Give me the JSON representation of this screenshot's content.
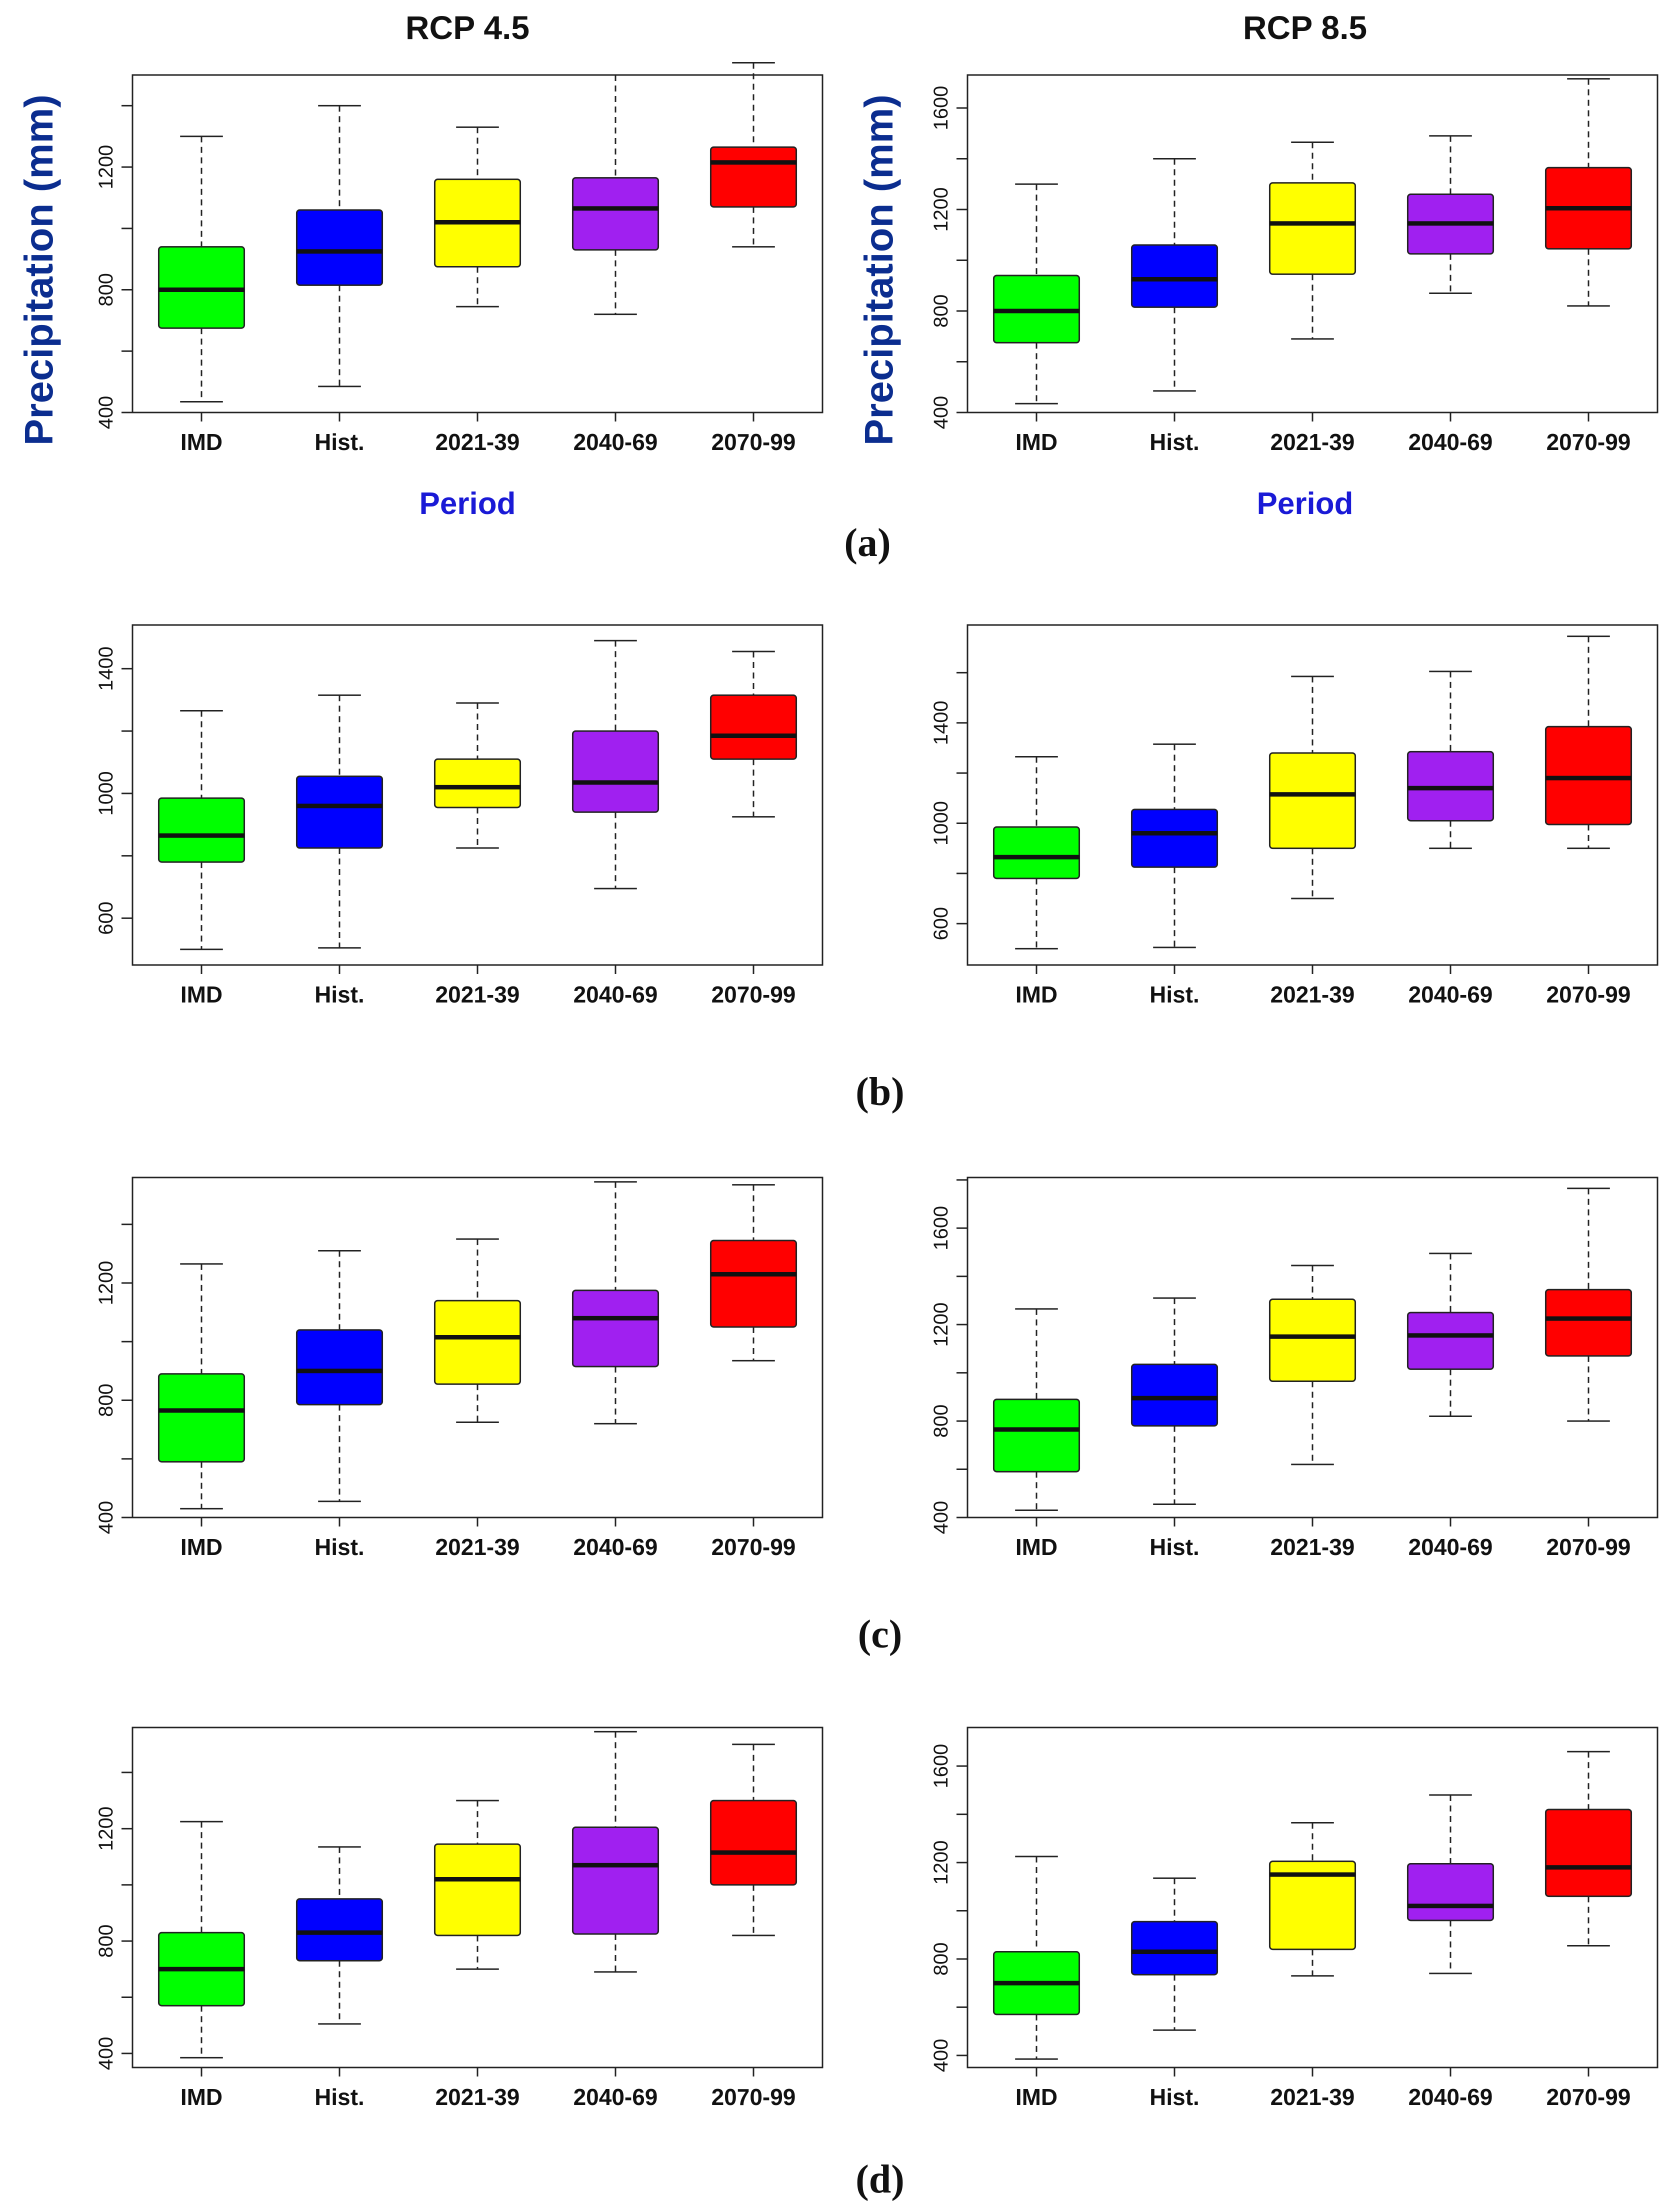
{
  "figure": {
    "column_titles": [
      "RCP 4.5",
      "RCP 8.5"
    ],
    "ylabel": "Precipitation (mm)",
    "xlabel": "Period",
    "panel_labels": [
      "(a)",
      "(b)",
      "(c)",
      "(d)"
    ]
  },
  "colors": {
    "IMD": "#00ff00",
    "Hist.": "#0000ff",
    "2021-39": "#ffff00",
    "2040-69": "#a020f0",
    "2070-99": "#ff0000",
    "axis_title": "#0b2d8f",
    "period_label": "#1a1ad6"
  },
  "chart_data": [
    {
      "id": "a-rcp45",
      "type": "box",
      "title": "RCP 4.5",
      "panel": "(a)",
      "ylabel": "Precipitation (mm)",
      "xlabel": "Period",
      "categories": [
        "IMD",
        "Hist.",
        "2021-39",
        "2040-69",
        "2070-99"
      ],
      "ylim": [
        400,
        1500
      ],
      "yticks": [
        400,
        800,
        1200
      ],
      "boxes": [
        {
          "min": 435,
          "q1": 675,
          "median": 800,
          "q3": 940,
          "max": 1300
        },
        {
          "min": 485,
          "q1": 815,
          "median": 925,
          "q3": 1060,
          "max": 1400
        },
        {
          "min": 745,
          "q1": 875,
          "median": 1020,
          "q3": 1160,
          "max": 1330
        },
        {
          "min": 720,
          "q1": 930,
          "median": 1065,
          "q3": 1165,
          "max": 1500
        },
        {
          "min": 940,
          "q1": 1070,
          "median": 1215,
          "q3": 1265,
          "max": 1540
        }
      ]
    },
    {
      "id": "a-rcp85",
      "type": "box",
      "title": "RCP 8.5",
      "panel": "(a)",
      "ylabel": "Precipitation (mm)",
      "xlabel": "Period",
      "categories": [
        "IMD",
        "Hist.",
        "2021-39",
        "2040-69",
        "2070-99"
      ],
      "ylim": [
        400,
        1730
      ],
      "yticks": [
        400,
        800,
        1200,
        1600
      ],
      "boxes": [
        {
          "min": 435,
          "q1": 675,
          "median": 800,
          "q3": 940,
          "max": 1300
        },
        {
          "min": 485,
          "q1": 815,
          "median": 925,
          "q3": 1060,
          "max": 1400
        },
        {
          "min": 690,
          "q1": 945,
          "median": 1145,
          "q3": 1305,
          "max": 1465
        },
        {
          "min": 870,
          "q1": 1025,
          "median": 1145,
          "q3": 1260,
          "max": 1490
        },
        {
          "min": 820,
          "q1": 1045,
          "median": 1205,
          "q3": 1365,
          "max": 1715
        }
      ]
    },
    {
      "id": "b-rcp45",
      "type": "box",
      "title": "",
      "panel": "(b)",
      "categories": [
        "IMD",
        "Hist.",
        "2021-39",
        "2040-69",
        "2070-99"
      ],
      "ylim": [
        450,
        1540
      ],
      "yticks": [
        600,
        1000,
        1400
      ],
      "boxes": [
        {
          "min": 500,
          "q1": 780,
          "median": 865,
          "q3": 985,
          "max": 1265
        },
        {
          "min": 505,
          "q1": 825,
          "median": 960,
          "q3": 1055,
          "max": 1315
        },
        {
          "min": 825,
          "q1": 955,
          "median": 1020,
          "q3": 1110,
          "max": 1290
        },
        {
          "min": 695,
          "q1": 940,
          "median": 1035,
          "q3": 1200,
          "max": 1490
        },
        {
          "min": 925,
          "q1": 1110,
          "median": 1185,
          "q3": 1315,
          "max": 1455
        }
      ]
    },
    {
      "id": "b-rcp85",
      "type": "box",
      "title": "",
      "panel": "(b)",
      "categories": [
        "IMD",
        "Hist.",
        "2021-39",
        "2040-69",
        "2070-99"
      ],
      "ylim": [
        435,
        1790
      ],
      "yticks": [
        600,
        1000,
        1400
      ],
      "boxes": [
        {
          "min": 500,
          "q1": 780,
          "median": 865,
          "q3": 985,
          "max": 1265
        },
        {
          "min": 505,
          "q1": 825,
          "median": 960,
          "q3": 1055,
          "max": 1315
        },
        {
          "min": 700,
          "q1": 900,
          "median": 1115,
          "q3": 1280,
          "max": 1585
        },
        {
          "min": 900,
          "q1": 1010,
          "median": 1140,
          "q3": 1285,
          "max": 1605
        },
        {
          "min": 900,
          "q1": 995,
          "median": 1180,
          "q3": 1385,
          "max": 1745
        }
      ]
    },
    {
      "id": "c-rcp45",
      "type": "box",
      "title": "",
      "panel": "(c)",
      "categories": [
        "IMD",
        "Hist.",
        "2021-39",
        "2040-69",
        "2070-99"
      ],
      "ylim": [
        400,
        1560
      ],
      "yticks": [
        400,
        800,
        1200
      ],
      "boxes": [
        {
          "min": 430,
          "q1": 590,
          "median": 765,
          "q3": 890,
          "max": 1265
        },
        {
          "min": 455,
          "q1": 785,
          "median": 900,
          "q3": 1040,
          "max": 1310
        },
        {
          "min": 725,
          "q1": 855,
          "median": 1015,
          "q3": 1140,
          "max": 1350
        },
        {
          "min": 720,
          "q1": 915,
          "median": 1080,
          "q3": 1175,
          "max": 1545
        },
        {
          "min": 935,
          "q1": 1050,
          "median": 1230,
          "q3": 1345,
          "max": 1535
        }
      ]
    },
    {
      "id": "c-rcp85",
      "type": "box",
      "title": "",
      "panel": "(c)",
      "categories": [
        "IMD",
        "Hist.",
        "2021-39",
        "2040-69",
        "2070-99"
      ],
      "ylim": [
        400,
        1810
      ],
      "yticks": [
        400,
        800,
        1200,
        1600
      ],
      "boxes": [
        {
          "min": 430,
          "q1": 590,
          "median": 765,
          "q3": 890,
          "max": 1265
        },
        {
          "min": 455,
          "q1": 780,
          "median": 895,
          "q3": 1035,
          "max": 1310
        },
        {
          "min": 620,
          "q1": 965,
          "median": 1150,
          "q3": 1305,
          "max": 1445
        },
        {
          "min": 820,
          "q1": 1015,
          "median": 1155,
          "q3": 1250,
          "max": 1495
        },
        {
          "min": 800,
          "q1": 1070,
          "median": 1225,
          "q3": 1345,
          "max": 1765
        }
      ]
    },
    {
      "id": "d-rcp45",
      "type": "box",
      "title": "",
      "panel": "(d)",
      "categories": [
        "IMD",
        "Hist.",
        "2021-39",
        "2040-69",
        "2070-99"
      ],
      "ylim": [
        350,
        1560
      ],
      "yticks": [
        400,
        800,
        1200
      ],
      "boxes": [
        {
          "min": 385,
          "q1": 570,
          "median": 700,
          "q3": 830,
          "max": 1225
        },
        {
          "min": 505,
          "q1": 730,
          "median": 830,
          "q3": 950,
          "max": 1135
        },
        {
          "min": 700,
          "q1": 820,
          "median": 1020,
          "q3": 1145,
          "max": 1300
        },
        {
          "min": 690,
          "q1": 825,
          "median": 1070,
          "q3": 1205,
          "max": 1545
        },
        {
          "min": 820,
          "q1": 1000,
          "median": 1115,
          "q3": 1300,
          "max": 1500
        }
      ]
    },
    {
      "id": "d-rcp85",
      "type": "box",
      "title": "",
      "panel": "(d)",
      "categories": [
        "IMD",
        "Hist.",
        "2021-39",
        "2040-69",
        "2070-99"
      ],
      "ylim": [
        350,
        1760
      ],
      "yticks": [
        400,
        800,
        1200,
        1600
      ],
      "boxes": [
        {
          "min": 385,
          "q1": 570,
          "median": 700,
          "q3": 830,
          "max": 1225
        },
        {
          "min": 505,
          "q1": 735,
          "median": 830,
          "q3": 955,
          "max": 1135
        },
        {
          "min": 730,
          "q1": 840,
          "median": 1150,
          "q3": 1205,
          "max": 1365
        },
        {
          "min": 740,
          "q1": 960,
          "median": 1020,
          "q3": 1195,
          "max": 1480
        },
        {
          "min": 855,
          "q1": 1060,
          "median": 1180,
          "q3": 1420,
          "max": 1660
        }
      ]
    }
  ]
}
